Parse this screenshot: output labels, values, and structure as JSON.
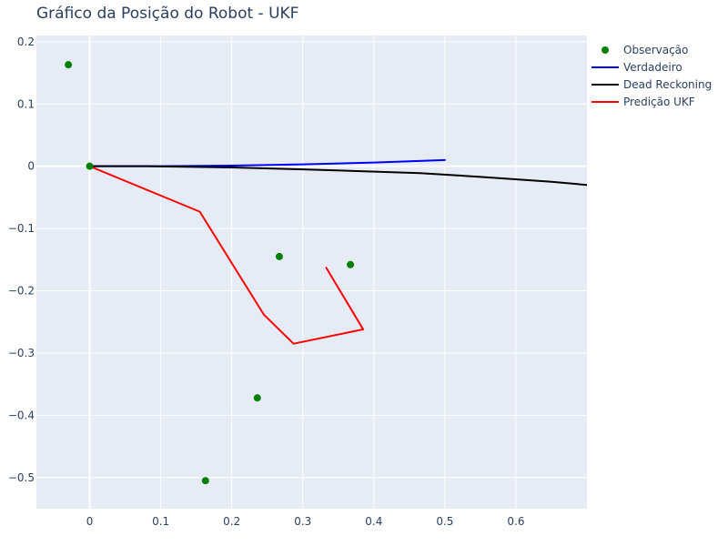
{
  "chart_data": {
    "type": "scatter",
    "title": "Gráfico da Posição do Robot - UKF",
    "xlabel": "",
    "ylabel": "",
    "xlim": [
      -0.075,
      0.7
    ],
    "ylim": [
      -0.55,
      0.21
    ],
    "x_ticks": [
      0,
      0.1,
      0.2,
      0.3,
      0.4,
      0.5,
      0.6
    ],
    "x_tick_labels": [
      "0",
      "0.1",
      "0.2",
      "0.3",
      "0.4",
      "0.5",
      "0.6"
    ],
    "y_ticks": [
      0.2,
      0.1,
      0,
      -0.1,
      -0.2,
      -0.3,
      -0.4,
      -0.5
    ],
    "y_tick_labels": [
      "0.2",
      "0.1",
      "0",
      "−0.1",
      "−0.2",
      "−0.3",
      "−0.4",
      "−0.5"
    ],
    "grid": true,
    "legend_position": "top-right",
    "background": "#e5ecf6",
    "series": [
      {
        "name": "Observação",
        "mode": "markers",
        "color": "#008000",
        "points": [
          {
            "x": -0.03,
            "y": 0.163
          },
          {
            "x": 0.0,
            "y": 0.0
          },
          {
            "x": 0.267,
            "y": -0.145
          },
          {
            "x": 0.367,
            "y": -0.158
          },
          {
            "x": 0.236,
            "y": -0.372
          },
          {
            "x": 0.163,
            "y": -0.505
          }
        ]
      },
      {
        "name": "Verdadeiro",
        "mode": "lines",
        "color": "#0000ff",
        "points": [
          {
            "x": 0.0,
            "y": 0.0
          },
          {
            "x": 0.1,
            "y": 0.0
          },
          {
            "x": 0.2,
            "y": 0.001
          },
          {
            "x": 0.3,
            "y": 0.003
          },
          {
            "x": 0.4,
            "y": 0.006
          },
          {
            "x": 0.5,
            "y": 0.01
          }
        ]
      },
      {
        "name": "Dead Reckoning",
        "mode": "lines",
        "color": "#000000",
        "points": [
          {
            "x": 0.0,
            "y": 0.0
          },
          {
            "x": 0.08,
            "y": 0.0
          },
          {
            "x": 0.2,
            "y": -0.002
          },
          {
            "x": 0.3,
            "y": -0.005
          },
          {
            "x": 0.465,
            "y": -0.011
          },
          {
            "x": 0.55,
            "y": -0.017
          },
          {
            "x": 0.65,
            "y": -0.025
          },
          {
            "x": 0.7,
            "y": -0.03
          }
        ]
      },
      {
        "name": "Predição UKF",
        "mode": "lines",
        "color": "#ff0000",
        "points": [
          {
            "x": 0.0,
            "y": 0.0
          },
          {
            "x": 0.155,
            "y": -0.073
          },
          {
            "x": 0.245,
            "y": -0.238
          },
          {
            "x": 0.287,
            "y": -0.285
          },
          {
            "x": 0.385,
            "y": -0.262
          },
          {
            "x": 0.333,
            "y": -0.163
          }
        ]
      }
    ]
  }
}
